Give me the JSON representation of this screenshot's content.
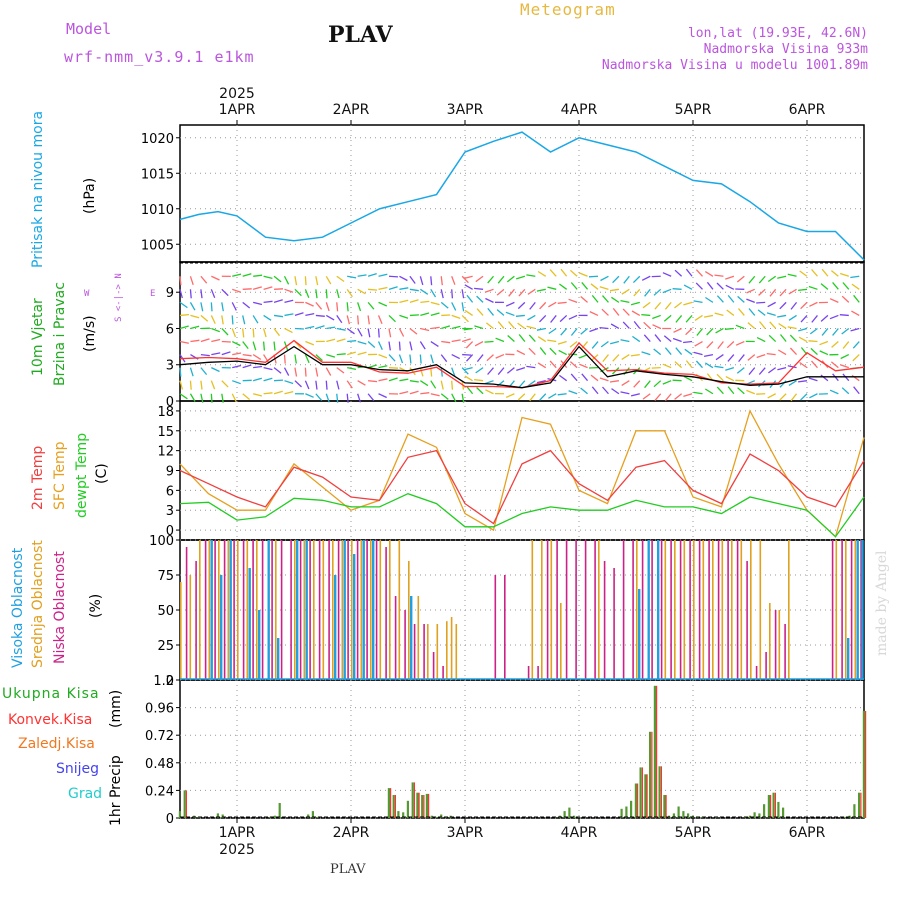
{
  "header": {
    "model_label": "Model",
    "model_name": "wrf-nmm_v3.9.1 e1km",
    "station": "PLAV",
    "chart_title": "Meteogram",
    "lonlat": "lon,lat (19.93E, 42.6N)",
    "elevation": "Nadmorska Visina 933m",
    "model_elevation": "Nadmorska Visina u modelu 1001.89m",
    "footer_station": "PLAV",
    "watermark": "made by Angel"
  },
  "colors": {
    "pressure": "#1aa7e6",
    "wind_speed": "#000000",
    "gust": "#ff3333",
    "t2m": "#f04040",
    "sfc": "#e6a020",
    "dewpt": "#22cc22",
    "cloud_high": "#20a0e0",
    "cloud_mid": "#e0a020",
    "cloud_low": "#cc2288",
    "precip_total": "#559933",
    "precip_conv": "#ff3333",
    "model_label": "#bb55dd",
    "title": "#e6b840"
  },
  "chart_data": [
    {
      "type": "line",
      "name": "pressure",
      "y_label_main": "Pritisak na nivou mora",
      "y_label_unit": "(hPa)",
      "yticks": [
        "1005",
        "1010",
        "1015",
        "1020"
      ],
      "ylim": [
        1002.5,
        1021.8
      ],
      "x_start": "2025-03-31 12:00",
      "x_end": "2025-04-06 12:00",
      "grid": true,
      "x_hours": [
        0,
        4,
        8,
        12,
        18,
        24,
        30,
        36,
        42,
        48,
        54,
        60,
        66,
        72,
        78,
        84,
        90,
        96,
        102,
        108,
        114,
        120,
        126,
        132,
        138,
        144
      ],
      "values": [
        1008.5,
        1009.2,
        1009.6,
        1009.0,
        1006.0,
        1005.5,
        1006.0,
        1008.0,
        1010.0,
        1011.0,
        1012.0,
        1018.0,
        1019.5,
        1020.8,
        1018.0,
        1020.0,
        1019.0,
        1018.0,
        1016.0,
        1014.0,
        1013.5,
        1011.0,
        1008.0,
        1006.8,
        1006.8,
        1002.8
      ]
    },
    {
      "type": "line",
      "name": "wind",
      "y_label_main": "10m Vjetar",
      "y_label_sub": "Brzina i Pravac",
      "y_label_unit": "(m/s)",
      "compass": [
        "W",
        "E",
        "N",
        "S"
      ],
      "yticks": [
        "0",
        "3",
        "6",
        "9"
      ],
      "ylim": [
        0,
        11.5
      ],
      "grid": true,
      "x_hours": [
        0,
        6,
        12,
        18,
        24,
        30,
        36,
        42,
        48,
        54,
        60,
        66,
        72,
        78,
        84,
        90,
        96,
        102,
        108,
        114,
        120,
        126,
        132,
        138,
        144
      ],
      "speed": [
        3.0,
        3.2,
        3.3,
        3.0,
        4.5,
        3.0,
        3.0,
        2.6,
        2.5,
        3.0,
        1.5,
        1.4,
        1.1,
        1.5,
        4.5,
        2.0,
        2.5,
        2.2,
        2.0,
        1.6,
        1.3,
        1.4,
        2.0,
        2.0,
        2.0
      ],
      "gust": [
        3.5,
        3.6,
        3.5,
        3.2,
        5.0,
        3.2,
        3.2,
        2.4,
        2.3,
        2.8,
        1.2,
        1.2,
        1.1,
        1.7,
        4.8,
        2.5,
        2.6,
        2.3,
        2.2,
        1.5,
        1.4,
        1.5,
        4.0,
        2.5,
        2.8
      ]
    },
    {
      "type": "line",
      "name": "temperature",
      "y_label_lines": [
        "2m Temp",
        "SFC Temp",
        "dewpt Temp"
      ],
      "y_label_unit": "(C)",
      "yticks": [
        "0",
        "3",
        "6",
        "9",
        "12",
        "15",
        "18"
      ],
      "ylim": [
        -1.5,
        19.5
      ],
      "grid": true,
      "x_hours": [
        0,
        6,
        12,
        18,
        24,
        30,
        36,
        42,
        48,
        54,
        60,
        66,
        72,
        78,
        84,
        90,
        96,
        102,
        108,
        114,
        120,
        126,
        132,
        138,
        144
      ],
      "t2m": [
        9,
        7,
        5,
        3.5,
        9.5,
        8,
        5,
        4.5,
        11,
        12,
        4,
        1,
        10,
        12,
        7,
        4.5,
        9.5,
        10.5,
        6,
        4,
        11.5,
        9,
        5,
        3.5,
        10.5
      ],
      "sfc": [
        10,
        5.5,
        3,
        3,
        10,
        6.5,
        3,
        4.5,
        14.5,
        12.5,
        2.5,
        0,
        17,
        16,
        6,
        4,
        15,
        15,
        5,
        3.5,
        18,
        10,
        3,
        -1,
        14
      ],
      "dewpt": [
        4,
        4.2,
        1.5,
        2,
        4.8,
        4.5,
        3.5,
        3.5,
        5.5,
        4,
        0.5,
        0.5,
        2.5,
        3.5,
        3,
        3,
        4.5,
        3.5,
        3.5,
        2.5,
        5,
        4,
        3,
        -1,
        5
      ]
    },
    {
      "type": "bar",
      "name": "cloud_cover",
      "y_label_lines": [
        "Visoka Oblacnost",
        "Srednja Oblacnost",
        "Niska Oblacnost"
      ],
      "y_label_unit": "(%)",
      "yticks": [
        "0",
        "25",
        "50",
        "75",
        "100"
      ],
      "ylim": [
        0,
        100
      ],
      "grid": true,
      "high_hours": [
        6,
        8,
        10,
        14,
        16,
        18,
        20,
        24,
        26,
        32,
        34,
        36,
        38,
        40,
        48,
        96,
        98,
        100,
        140,
        142,
        143
      ],
      "high_values": [
        100,
        75,
        100,
        80,
        50,
        100,
        30,
        100,
        100,
        75,
        100,
        90,
        100,
        100,
        60,
        65,
        100,
        100,
        30,
        100,
        100
      ],
      "mid_hours": [
        0,
        2,
        4,
        6,
        8,
        10,
        12,
        14,
        16,
        20,
        24,
        26,
        28,
        30,
        32,
        34,
        36,
        38,
        40,
        42,
        44,
        46,
        48,
        50,
        52,
        54,
        56,
        57,
        58,
        74,
        76,
        78,
        80,
        88,
        96,
        102,
        104,
        106,
        108,
        110,
        112,
        114,
        116,
        118,
        120,
        122,
        124,
        126,
        128,
        138,
        140,
        142
      ],
      "mid_values": [
        70,
        75,
        100,
        100,
        100,
        100,
        100,
        100,
        100,
        100,
        100,
        100,
        100,
        100,
        100,
        100,
        100,
        100,
        100,
        100,
        100,
        100,
        85,
        60,
        40,
        40,
        42,
        45,
        40,
        100,
        100,
        100,
        55,
        100,
        100,
        100,
        100,
        100,
        100,
        100,
        100,
        100,
        100,
        100,
        100,
        100,
        55,
        50,
        100,
        100,
        100,
        100
      ],
      "low_hours": [
        1,
        3,
        5,
        7,
        9,
        11,
        13,
        15,
        17,
        19,
        21,
        23,
        25,
        27,
        29,
        31,
        33,
        35,
        37,
        39,
        41,
        43,
        45,
        47,
        49,
        51,
        53,
        55,
        66,
        68,
        73,
        75,
        77,
        79,
        81,
        83,
        85,
        87,
        89,
        91,
        93,
        95,
        97,
        99,
        101,
        103,
        105,
        107,
        109,
        111,
        113,
        115,
        117,
        119,
        121,
        123,
        125,
        127,
        137,
        139,
        141,
        143
      ],
      "low_values": [
        95,
        85,
        100,
        100,
        100,
        100,
        100,
        100,
        100,
        100,
        100,
        100,
        100,
        100,
        100,
        100,
        100,
        100,
        100,
        100,
        100,
        95,
        60,
        50,
        40,
        40,
        20,
        10,
        75,
        75,
        10,
        10,
        100,
        100,
        100,
        100,
        100,
        100,
        85,
        80,
        100,
        100,
        100,
        100,
        100,
        100,
        100,
        100,
        100,
        100,
        100,
        100,
        100,
        85,
        10,
        20,
        50,
        40,
        100,
        100,
        100,
        100
      ]
    },
    {
      "type": "bar",
      "name": "precipitation",
      "legend": [
        "Ukupna Kisa",
        "Konvek.Kisa",
        "Zaledj.Kisa",
        "Snijeg",
        "Grad"
      ],
      "y_label_main": "1hr Precip",
      "y_label_unit": "(mm)",
      "yticks": [
        "0",
        "0.24",
        "0.48",
        "0.72",
        "0.96",
        "1.2"
      ],
      "ylim": [
        0,
        1.2
      ],
      "grid": true,
      "hours": [
        0,
        1,
        3,
        4,
        8,
        9,
        19,
        20,
        21,
        27,
        28,
        29,
        44,
        45,
        46,
        47,
        48,
        49,
        50,
        51,
        52,
        53,
        54,
        55,
        56,
        57,
        80,
        81,
        82,
        83,
        84,
        93,
        94,
        95,
        96,
        97,
        98,
        99,
        100,
        101,
        102,
        103,
        104,
        105,
        106,
        107,
        108,
        109,
        110,
        113,
        119,
        120,
        121,
        122,
        123,
        124,
        125,
        126,
        127,
        140,
        141,
        142,
        143,
        144
      ],
      "values": [
        0.06,
        0.24,
        0.02,
        0.01,
        0.04,
        0.03,
        0.01,
        0.02,
        0.13,
        0.03,
        0.06,
        0.01,
        0.26,
        0.2,
        0.06,
        0.05,
        0.15,
        0.31,
        0.22,
        0.2,
        0.21,
        0.02,
        0.01,
        0.03,
        0.01,
        0.02,
        0.02,
        0.06,
        0.09,
        0.02,
        0.01,
        0.08,
        0.1,
        0.15,
        0.3,
        0.44,
        0.38,
        0.75,
        1.15,
        0.45,
        0.2,
        0.02,
        0.04,
        0.1,
        0.06,
        0.04,
        0.02,
        0.01,
        0.01,
        0.01,
        0.01,
        0.02,
        0.05,
        0.04,
        0.12,
        0.2,
        0.22,
        0.14,
        0.09,
        0.01,
        0.02,
        0.12,
        0.22,
        0.93
      ]
    }
  ],
  "xaxis": {
    "year": "2025",
    "day_labels": [
      "1APR",
      "2APR",
      "3APR",
      "4APR",
      "5APR",
      "6APR"
    ]
  }
}
